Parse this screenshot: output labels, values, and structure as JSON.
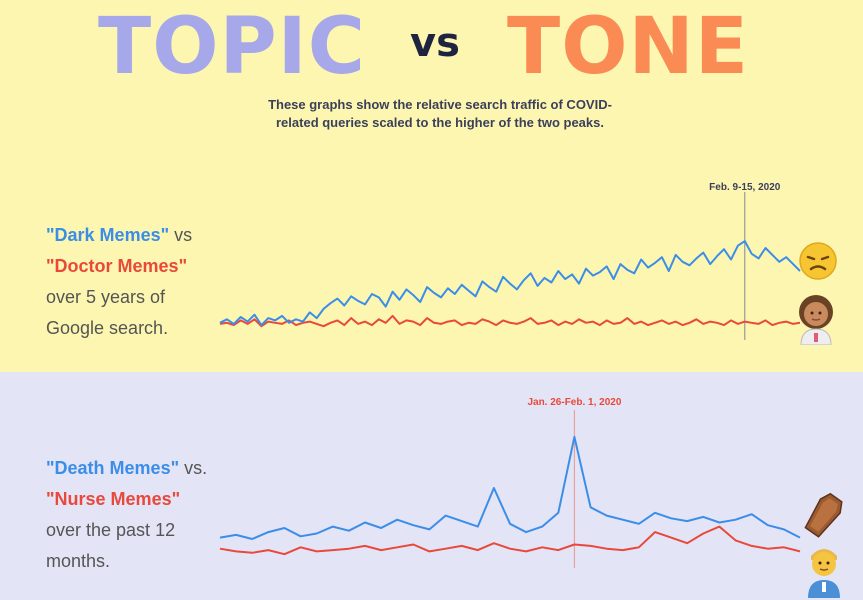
{
  "title": {
    "topic": "TOPIC",
    "vs": "vs",
    "tone": "TONE"
  },
  "subtitle_line1": "These graphs show the relative search traffic of COVID-",
  "subtitle_line2": "related queries scaled to the higher of the two peaks.",
  "top_caption": {
    "series1": "\"Dark Memes\"",
    "joiner": " vs",
    "series2": "\"Doctor Memes\"",
    "line3": "over 5 years of",
    "line4": "Google search."
  },
  "bottom_caption": {
    "series1": "\"Death Memes\"",
    "joiner": " vs.",
    "series2": "\"Nurse Memes\"",
    "line3": "over the past 12",
    "line4": "months."
  },
  "chart_data": [
    {
      "type": "line",
      "annotation": "Feb. 9-15, 2020",
      "annotation_index": 76,
      "ylim": [
        0,
        100
      ],
      "colors": {
        "series1": "#3b8ee8",
        "series2": "#e8493a"
      },
      "series": [
        {
          "values": [
            15,
            18,
            14,
            20,
            16,
            22,
            13,
            19,
            17,
            21,
            15,
            18,
            16,
            24,
            19,
            27,
            32,
            36,
            30,
            38,
            34,
            31,
            40,
            37,
            29,
            42,
            35,
            44,
            39,
            33,
            46,
            41,
            37,
            45,
            40,
            48,
            43,
            38,
            51,
            46,
            42,
            55,
            49,
            44,
            52,
            58,
            47,
            54,
            50,
            60,
            53,
            57,
            49,
            62,
            56,
            59,
            64,
            53,
            66,
            61,
            58,
            70,
            63,
            67,
            72,
            60,
            74,
            68,
            65,
            71,
            76,
            66,
            73,
            79,
            70,
            82,
            86,
            75,
            71,
            80,
            74,
            68,
            72,
            66,
            60
          ]
        },
        {
          "values": [
            14,
            15,
            13,
            17,
            14,
            18,
            12,
            16,
            15,
            14,
            17,
            13,
            15,
            16,
            14,
            12,
            15,
            17,
            13,
            19,
            14,
            16,
            13,
            18,
            15,
            21,
            14,
            17,
            16,
            13,
            19,
            15,
            14,
            16,
            17,
            13,
            15,
            14,
            18,
            16,
            13,
            17,
            15,
            14,
            16,
            19,
            14,
            15,
            17,
            13,
            16,
            14,
            18,
            15,
            16,
            13,
            17,
            14,
            15,
            19,
            14,
            16,
            13,
            15,
            17,
            14,
            16,
            13,
            15,
            18,
            14,
            16,
            15,
            13,
            17,
            14,
            16,
            15,
            14,
            17,
            13,
            15,
            16,
            14,
            15
          ]
        }
      ]
    },
    {
      "type": "line",
      "annotation": "Jan. 26-Feb. 1, 2020",
      "annotation_index": 22,
      "ylim": [
        0,
        100
      ],
      "colors": {
        "series1": "#3b8ee8",
        "series2": "#e8493a"
      },
      "series": [
        {
          "values": [
            22,
            24,
            21,
            26,
            29,
            23,
            25,
            30,
            27,
            33,
            29,
            35,
            31,
            28,
            38,
            34,
            30,
            58,
            32,
            26,
            30,
            40,
            95,
            44,
            38,
            35,
            32,
            40,
            36,
            34,
            37,
            33,
            35,
            39,
            31,
            28,
            22
          ]
        },
        {
          "values": [
            14,
            12,
            11,
            13,
            10,
            15,
            12,
            13,
            14,
            16,
            13,
            15,
            17,
            12,
            14,
            16,
            13,
            18,
            14,
            12,
            15,
            13,
            17,
            16,
            14,
            13,
            15,
            26,
            22,
            18,
            25,
            30,
            20,
            16,
            14,
            15,
            12
          ]
        }
      ]
    }
  ]
}
